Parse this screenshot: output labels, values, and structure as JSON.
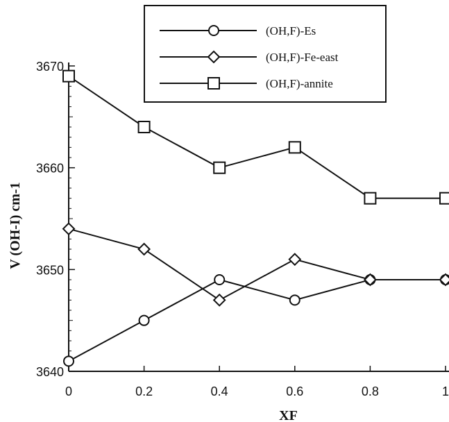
{
  "chart_data": {
    "type": "line",
    "title": "",
    "xlabel": "XF",
    "ylabel": "V (OH-I) cm-1",
    "xlim": [
      0,
      1
    ],
    "ylim": [
      3640,
      3670
    ],
    "x_ticks": [
      "0",
      "0.2",
      "0.4",
      "0.6",
      "0.8",
      "1"
    ],
    "y_ticks": [
      "3640",
      "3650",
      "3660",
      "3670"
    ],
    "grid": false,
    "legend_position": "top-center",
    "x": [
      0,
      0.2,
      0.4,
      0.6,
      0.8,
      1
    ],
    "series": [
      {
        "name": "(OH,F)-Es",
        "marker": "circle",
        "values": [
          3641,
          3645,
          3649,
          3647,
          3649,
          3649
        ]
      },
      {
        "name": "(OH,F)-Fe-east",
        "marker": "diamond",
        "values": [
          3654,
          3652,
          3647,
          3651,
          3649,
          3649
        ]
      },
      {
        "name": "(OH,F)-annite",
        "marker": "square",
        "values": [
          3669,
          3664,
          3660,
          3662,
          3657,
          3657
        ]
      }
    ],
    "colors": {
      "line": "#111111",
      "marker_fill": "#ffffff",
      "background": "#ffffff"
    }
  }
}
